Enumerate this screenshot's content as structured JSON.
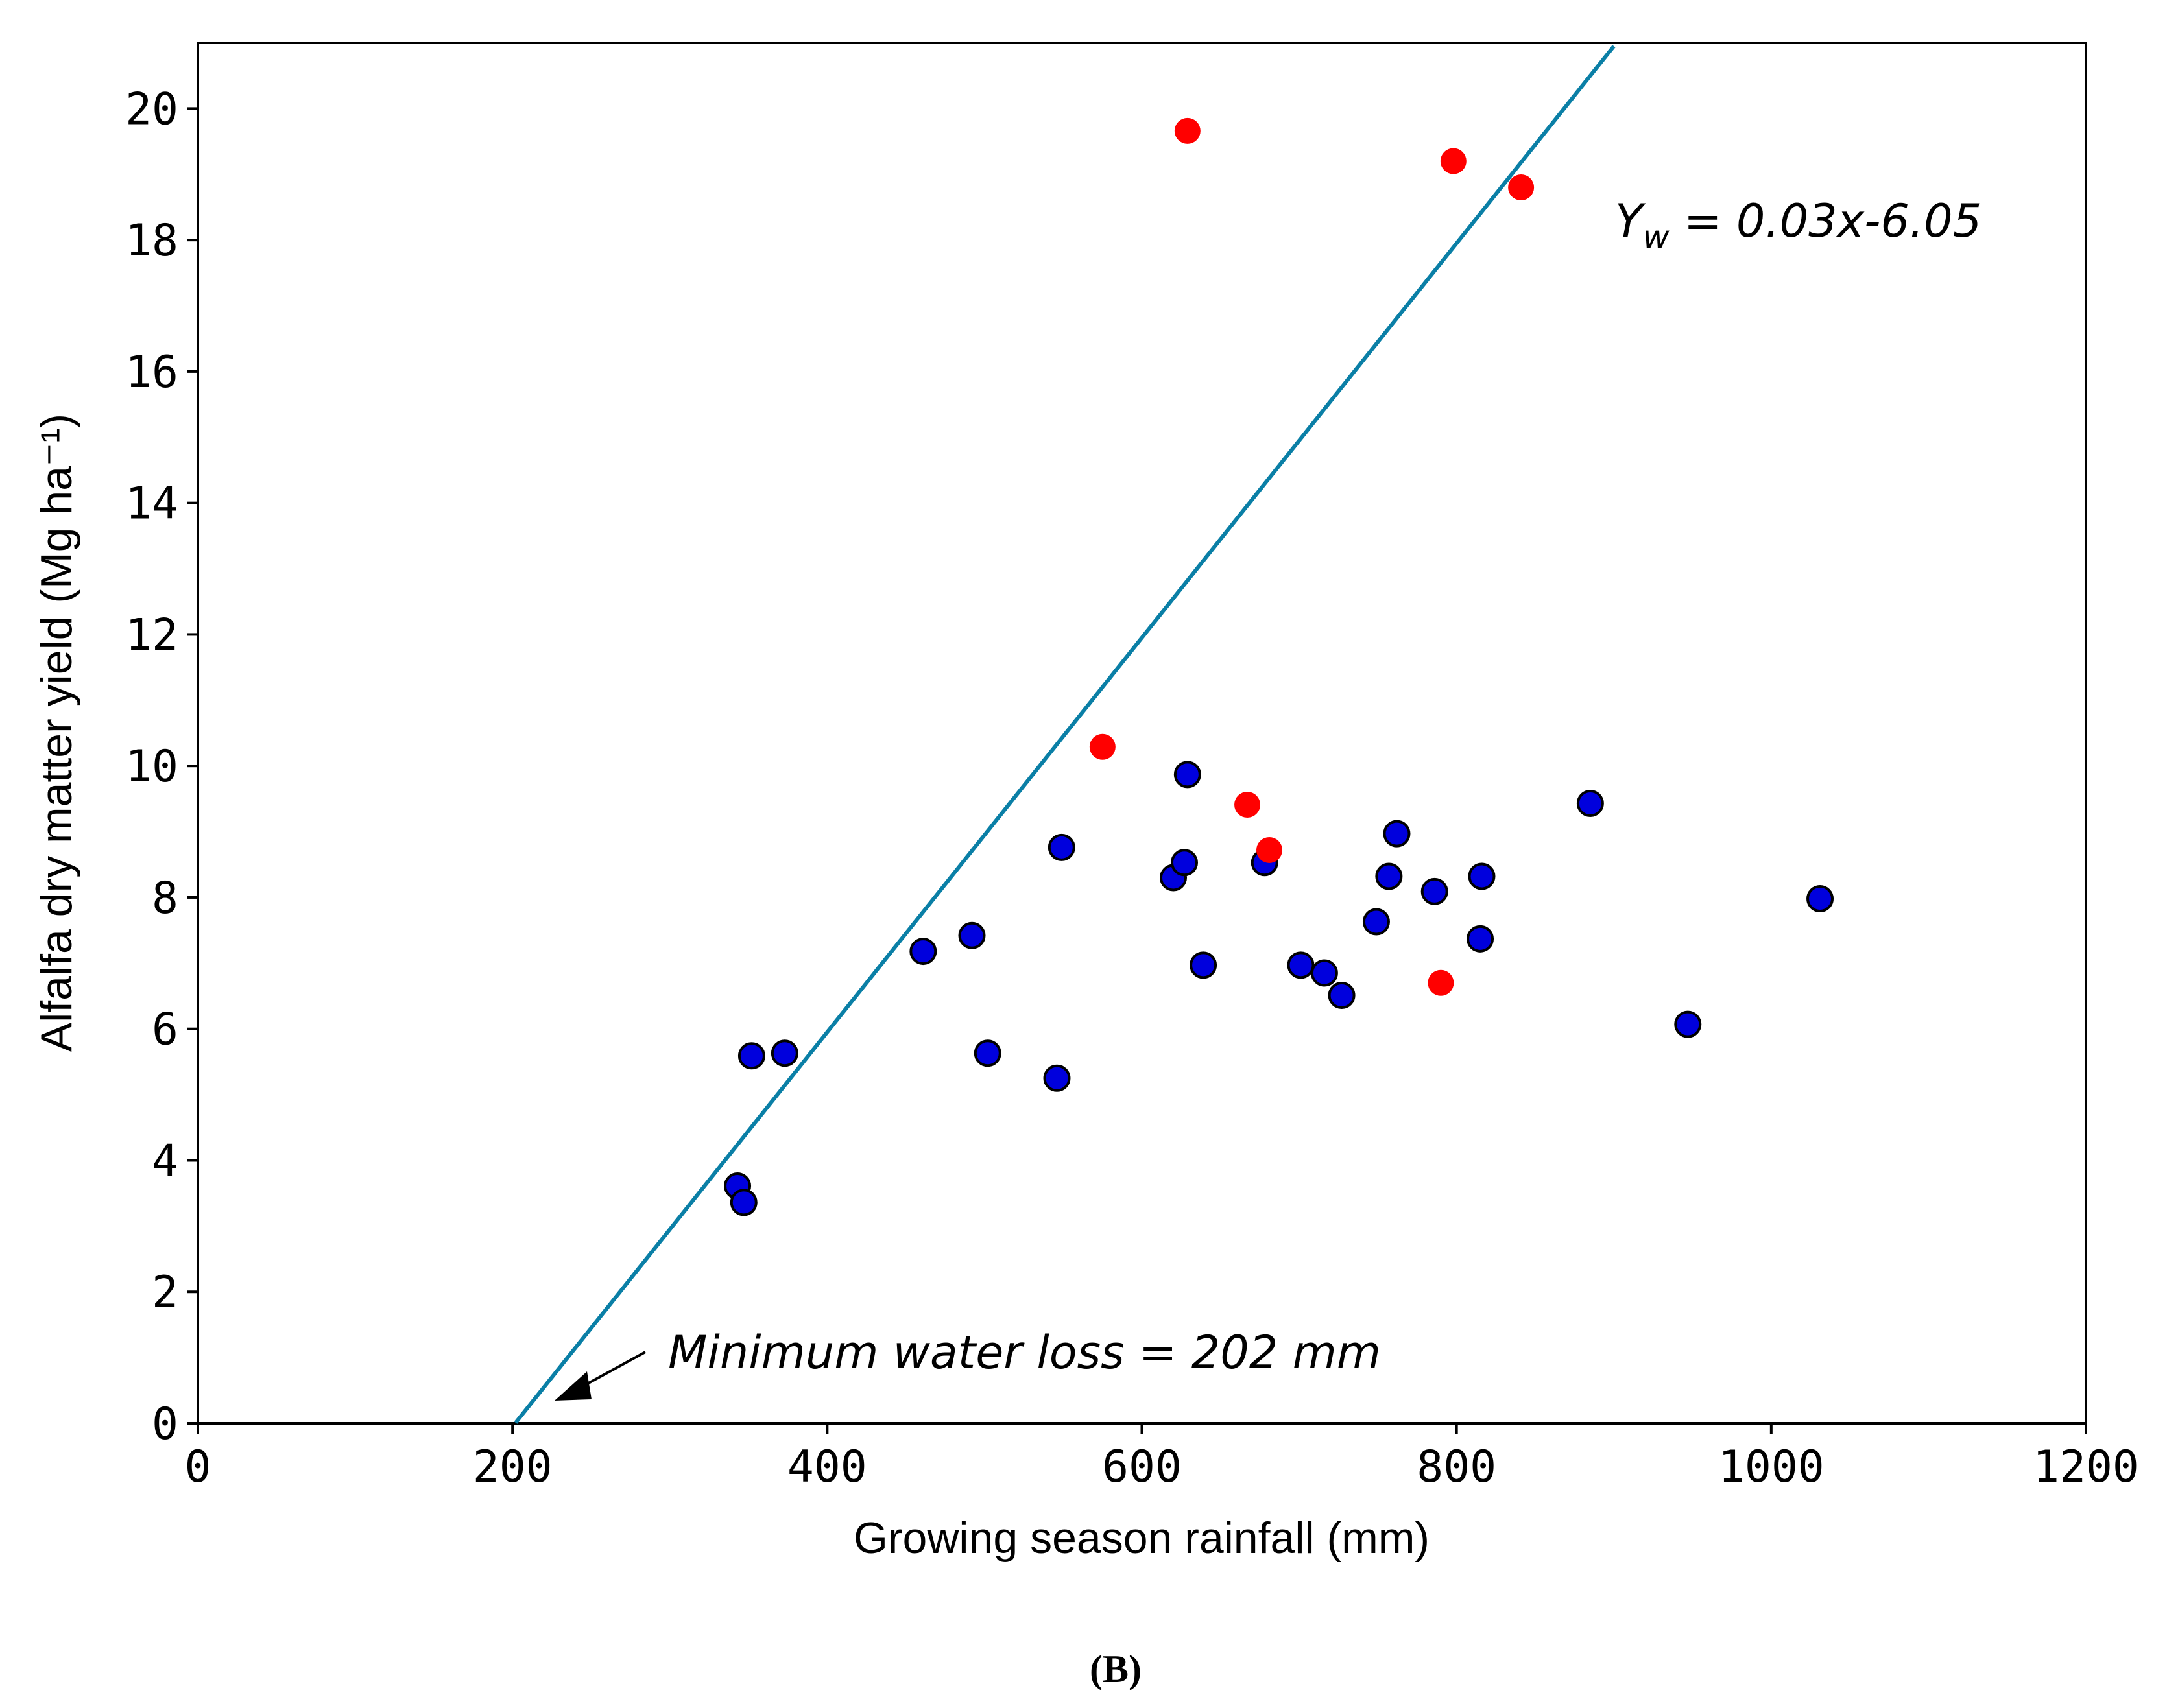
{
  "chart_data": {
    "type": "scatter",
    "title": "",
    "xlabel": "Growing season rainfall (mm)",
    "ylabel": "Alfalfa dry matter yield (Mg ha⁻¹)",
    "xlim": [
      0,
      1200
    ],
    "ylim": [
      0,
      21
    ],
    "xticks": [
      0,
      200,
      400,
      600,
      800,
      1000,
      1200
    ],
    "yticks": [
      0,
      2,
      4,
      6,
      8,
      10,
      12,
      14,
      16,
      18,
      20
    ],
    "grid": false,
    "series": [
      {
        "name": "blue",
        "color": "#0000dd",
        "edge": "#000000",
        "x": [
          343,
          347,
          352,
          373,
          461,
          492,
          502,
          546,
          549,
          620,
          627,
          629,
          639,
          678,
          701,
          716,
          727,
          749,
          757,
          762,
          786,
          815,
          816,
          885,
          947,
          1031
        ],
        "y": [
          3.61,
          3.36,
          5.59,
          5.63,
          7.18,
          7.42,
          5.63,
          5.25,
          8.76,
          8.3,
          8.53,
          9.87,
          6.97,
          8.53,
          6.97,
          6.85,
          6.51,
          7.63,
          8.32,
          8.97,
          8.09,
          7.37,
          8.32,
          9.43,
          6.07,
          7.98
        ]
      },
      {
        "name": "red",
        "color": "#ff0000",
        "edge": "none",
        "x": [
          629,
          798,
          841,
          575,
          667,
          681,
          790
        ],
        "y": [
          19.66,
          19.2,
          18.8,
          10.29,
          9.41,
          8.72,
          6.7
        ]
      }
    ],
    "fit_line": {
      "slope": 0.03,
      "intercept": -6.05,
      "x_start": 202,
      "x_end": 900,
      "color": "#0a7fa6"
    },
    "annotations": {
      "equation_prefix": "Y",
      "equation_sub": "w",
      "equation_rest": " = 0.03x-6.05",
      "min_loss": "Minimum water loss = 202 mm"
    },
    "caption": "(B)"
  }
}
